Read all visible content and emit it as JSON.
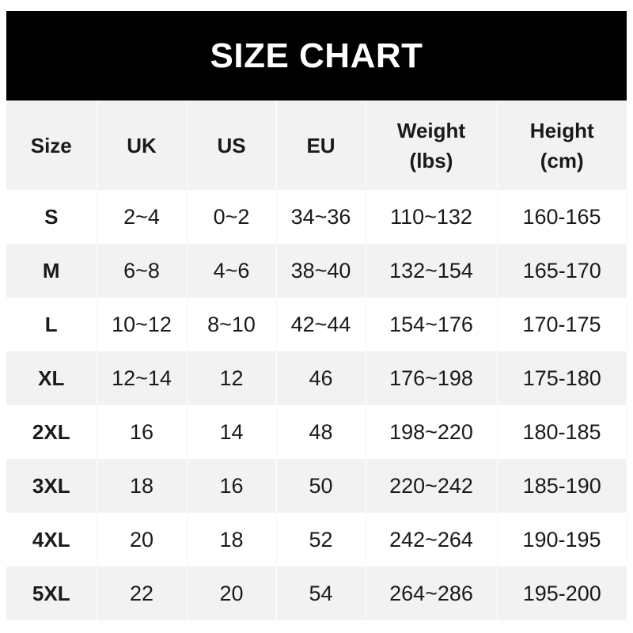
{
  "title": "SIZE CHART",
  "colors": {
    "header_bg": "#000000",
    "header_text": "#ffffff",
    "stripe": "#f2f2f2"
  },
  "columns": [
    "Size",
    "UK",
    "US",
    "EU",
    "Weight\n(lbs)",
    "Height\n(cm)"
  ],
  "rows": [
    [
      "S",
      "2~4",
      "0~2",
      "34~36",
      "110~132",
      "160-165"
    ],
    [
      "M",
      "6~8",
      "4~6",
      "38~40",
      "132~154",
      "165-170"
    ],
    [
      "L",
      "10~12",
      "8~10",
      "42~44",
      "154~176",
      "170-175"
    ],
    [
      "XL",
      "12~14",
      "12",
      "46",
      "176~198",
      "175-180"
    ],
    [
      "2XL",
      "16",
      "14",
      "48",
      "198~220",
      "180-185"
    ],
    [
      "3XL",
      "18",
      "16",
      "50",
      "220~242",
      "185-190"
    ],
    [
      "4XL",
      "20",
      "18",
      "52",
      "242~264",
      "190-195"
    ],
    [
      "5XL",
      "22",
      "20",
      "54",
      "264~286",
      "195-200"
    ]
  ]
}
